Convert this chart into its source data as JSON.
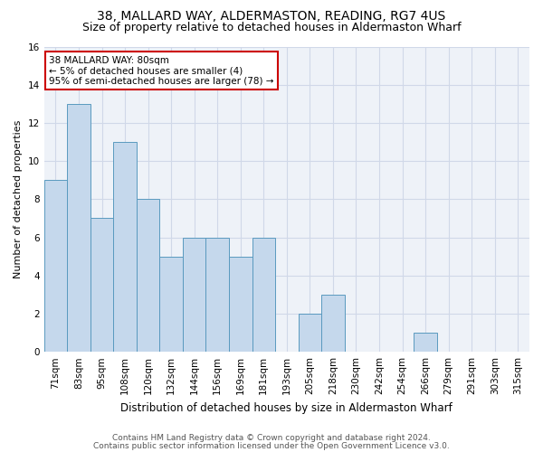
{
  "title1": "38, MALLARD WAY, ALDERMASTON, READING, RG7 4US",
  "title2": "Size of property relative to detached houses in Aldermaston Wharf",
  "xlabel": "Distribution of detached houses by size in Aldermaston Wharf",
  "ylabel": "Number of detached properties",
  "categories": [
    "71sqm",
    "83sqm",
    "95sqm",
    "108sqm",
    "120sqm",
    "132sqm",
    "144sqm",
    "156sqm",
    "169sqm",
    "181sqm",
    "193sqm",
    "205sqm",
    "218sqm",
    "230sqm",
    "242sqm",
    "254sqm",
    "266sqm",
    "279sqm",
    "291sqm",
    "303sqm",
    "315sqm"
  ],
  "values": [
    9,
    13,
    7,
    11,
    8,
    5,
    6,
    6,
    5,
    6,
    0,
    2,
    3,
    0,
    0,
    0,
    1,
    0,
    0,
    0,
    0
  ],
  "bar_color": "#c5d8ec",
  "bar_edge_color": "#5a9abf",
  "annotation_text": "38 MALLARD WAY: 80sqm\n← 5% of detached houses are smaller (4)\n95% of semi-detached houses are larger (78) →",
  "annotation_box_color": "#ffffff",
  "annotation_box_edge_color": "#cc0000",
  "ylim": [
    0,
    16
  ],
  "yticks": [
    0,
    2,
    4,
    6,
    8,
    10,
    12,
    14,
    16
  ],
  "grid_color": "#d0d8e8",
  "background_color": "#eef2f8",
  "footer1": "Contains HM Land Registry data © Crown copyright and database right 2024.",
  "footer2": "Contains public sector information licensed under the Open Government Licence v3.0.",
  "title1_fontsize": 10,
  "title2_fontsize": 9,
  "xlabel_fontsize": 8.5,
  "ylabel_fontsize": 8,
  "tick_fontsize": 7.5,
  "annotation_fontsize": 7.5,
  "footer_fontsize": 6.5
}
